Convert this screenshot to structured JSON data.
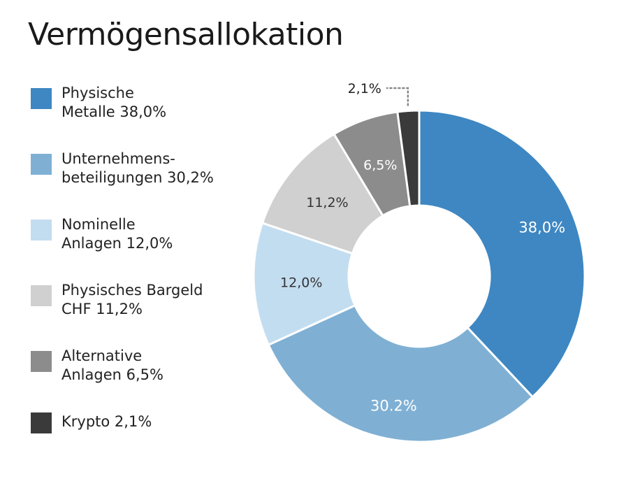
{
  "chart_data": {
    "type": "pie",
    "donut": true,
    "title": "Vermögensallokation",
    "slices": [
      {
        "legend_lines": [
          "Physische",
          "Metalle 38,0%"
        ],
        "value": 38.0,
        "label": "38,0%",
        "color": "#3e87c2",
        "label_color": "#ffffff"
      },
      {
        "legend_lines": [
          "Unternehmens-",
          "beteiligungen 30,2%"
        ],
        "value": 30.2,
        "label": "30.2%",
        "color": "#7fb0d4",
        "label_color": "#ffffff"
      },
      {
        "legend_lines": [
          "Nominelle",
          "Anlagen 12,0%"
        ],
        "value": 12.0,
        "label": "12,0%",
        "color": "#c3ddf0",
        "label_color": "#333333"
      },
      {
        "legend_lines": [
          "Physisches Bargeld",
          "CHF  11,2%"
        ],
        "value": 11.2,
        "label": "11,2%",
        "color": "#d0d0d0",
        "label_color": "#333333"
      },
      {
        "legend_lines": [
          "Alternative",
          "Anlagen 6,5%"
        ],
        "value": 6.5,
        "label": "6,5%",
        "color": "#8c8c8c",
        "label_color": "#ffffff"
      },
      {
        "legend_lines": [
          "Krypto 2,1%"
        ],
        "value": 2.1,
        "label": "2,1%",
        "color": "#3a3a3a",
        "label_color": "#222222"
      }
    ]
  }
}
